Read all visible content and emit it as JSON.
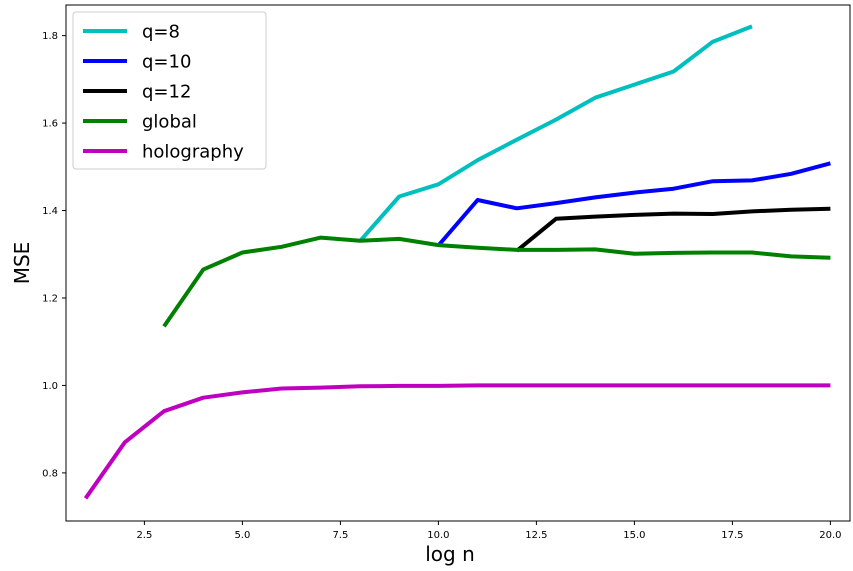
{
  "chart_data": {
    "type": "line",
    "title": "",
    "xlabel": "log n",
    "ylabel": "MSE",
    "xlim": [
      0.5,
      20.5
    ],
    "ylim": [
      0.69,
      1.87
    ],
    "xticks": [
      "2.5",
      "5.0",
      "7.5",
      "10.0",
      "12.5",
      "15.0",
      "17.5",
      "20.0"
    ],
    "xtick_values": [
      2.5,
      5.0,
      7.5,
      10.0,
      12.5,
      15.0,
      17.5,
      20.0
    ],
    "yticks": [
      "0.8",
      "1.0",
      "1.2",
      "1.4",
      "1.6",
      "1.8"
    ],
    "ytick_values": [
      0.8,
      1.0,
      1.2,
      1.4,
      1.6,
      1.8
    ],
    "grid": false,
    "legend_position": "top-left",
    "series": [
      {
        "name": "q=8",
        "color": "#00bfbf",
        "x": [
          8,
          9,
          10,
          11,
          12,
          13,
          14,
          15,
          16,
          17,
          18
        ],
        "y": [
          1.33,
          1.432,
          1.46,
          1.515,
          1.562,
          1.608,
          1.658,
          1.688,
          1.718,
          1.786,
          1.821
        ]
      },
      {
        "name": "q=10",
        "color": "#0000ff",
        "x": [
          10,
          11,
          12,
          13,
          14,
          15,
          16,
          17,
          18,
          19,
          20
        ],
        "y": [
          1.32,
          1.424,
          1.405,
          1.417,
          1.43,
          1.441,
          1.45,
          1.467,
          1.469,
          1.484,
          1.508
        ]
      },
      {
        "name": "q=12",
        "color": "#000000",
        "x": [
          12,
          13,
          14,
          15,
          16,
          17,
          18,
          19,
          20
        ],
        "y": [
          1.308,
          1.381,
          1.386,
          1.39,
          1.393,
          1.392,
          1.398,
          1.402,
          1.404
        ]
      },
      {
        "name": "global",
        "color": "#008000",
        "x": [
          3,
          4,
          5,
          6,
          7,
          8,
          9,
          10,
          11,
          12,
          13,
          14,
          15,
          16,
          17,
          18,
          19,
          20
        ],
        "y": [
          1.135,
          1.265,
          1.304,
          1.317,
          1.338,
          1.331,
          1.335,
          1.321,
          1.315,
          1.31,
          1.31,
          1.311,
          1.301,
          1.303,
          1.304,
          1.304,
          1.295,
          1.292
        ]
      },
      {
        "name": "holography",
        "color": "#bf00bf",
        "x": [
          1,
          2,
          3,
          4,
          5,
          6,
          7,
          8,
          9,
          10,
          11,
          12,
          13,
          14,
          15,
          16,
          17,
          18,
          19,
          20
        ],
        "y": [
          0.742,
          0.87,
          0.941,
          0.972,
          0.984,
          0.993,
          0.995,
          0.998,
          0.999,
          0.999,
          1.0,
          1.0,
          1.0,
          1.0,
          1.0,
          1.0,
          1.0,
          1.0,
          1.0,
          1.0
        ]
      }
    ]
  }
}
